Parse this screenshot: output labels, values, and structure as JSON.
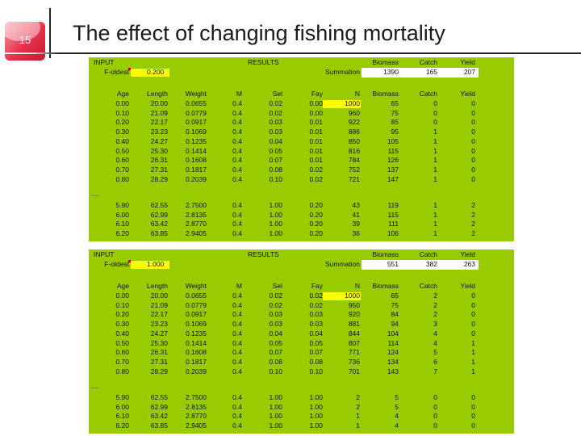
{
  "slide": {
    "number": "15",
    "title": "The effect of changing fishing mortality"
  },
  "labels": {
    "input": "INPUT",
    "f_oldest": "F-oldest",
    "results": "RESULTS",
    "summation": "Summation",
    "biomass": "Biomass",
    "catch": "Catch",
    "yield": "Yield",
    "ellipsis": "....",
    "columns": [
      "Age",
      "Length",
      "Weight",
      "M",
      "Sel",
      "Fay",
      "N",
      "Biomass",
      "Catch",
      "Yield"
    ]
  },
  "tables": [
    {
      "f_oldest_value": "0.200",
      "summation": {
        "biomass": "1390",
        "catch": "165",
        "yield": "207"
      },
      "rows_top": [
        [
          "0.00",
          "20.00",
          "0.0655",
          "0.4",
          "0.02",
          "0.00",
          "1000",
          "65",
          "0",
          "0"
        ],
        [
          "0.10",
          "21.09",
          "0.0779",
          "0.4",
          "0.02",
          "0.00",
          "960",
          "75",
          "0",
          "0"
        ],
        [
          "0.20",
          "22.17",
          "0.0917",
          "0.4",
          "0.03",
          "0.01",
          "922",
          "85",
          "0",
          "0"
        ],
        [
          "0.30",
          "23.23",
          "0.1069",
          "0.4",
          "0.03",
          "0.01",
          "886",
          "95",
          "1",
          "0"
        ],
        [
          "0.40",
          "24.27",
          "0.1235",
          "0.4",
          "0.04",
          "0.01",
          "850",
          "105",
          "1",
          "0"
        ],
        [
          "0.50",
          "25.30",
          "0.1414",
          "0.4",
          "0.05",
          "0.01",
          "816",
          "115",
          "1",
          "0"
        ],
        [
          "0.60",
          "26.31",
          "0.1608",
          "0.4",
          "0.07",
          "0.01",
          "784",
          "126",
          "1",
          "0"
        ],
        [
          "0.70",
          "27.31",
          "0.1817",
          "0.4",
          "0.08",
          "0.02",
          "752",
          "137",
          "1",
          "0"
        ],
        [
          "0.80",
          "28.29",
          "0.2039",
          "0.4",
          "0.10",
          "0.02",
          "721",
          "147",
          "1",
          "0"
        ]
      ],
      "rows_bottom": [
        [
          "5.90",
          "62.55",
          "2.7500",
          "0.4",
          "1.00",
          "0.20",
          "43",
          "119",
          "1",
          "2"
        ],
        [
          "6.00",
          "62.99",
          "2.8135",
          "0.4",
          "1.00",
          "0.20",
          "41",
          "115",
          "1",
          "2"
        ],
        [
          "6.10",
          "63.42",
          "2.8770",
          "0.4",
          "1.00",
          "0.20",
          "39",
          "111",
          "1",
          "2"
        ],
        [
          "6.20",
          "63.85",
          "2.9405",
          "0.4",
          "1.00",
          "0.20",
          "36",
          "106",
          "1",
          "2"
        ]
      ]
    },
    {
      "f_oldest_value": "1.000",
      "summation": {
        "biomass": "551",
        "catch": "382",
        "yield": "263"
      },
      "rows_top": [
        [
          "0.00",
          "20.00",
          "0.0655",
          "0.4",
          "0.02",
          "0.02",
          "1000",
          "65",
          "2",
          "0"
        ],
        [
          "0.10",
          "21.09",
          "0.0779",
          "0.4",
          "0.02",
          "0.02",
          "950",
          "75",
          "2",
          "0"
        ],
        [
          "0.20",
          "22.17",
          "0.0917",
          "0.4",
          "0.03",
          "0.03",
          "920",
          "84",
          "2",
          "0"
        ],
        [
          "0.30",
          "23.23",
          "0.1069",
          "0.4",
          "0.03",
          "0.03",
          "881",
          "94",
          "3",
          "0"
        ],
        [
          "0.40",
          "24.27",
          "0.1235",
          "0.4",
          "0.04",
          "0.04",
          "844",
          "104",
          "4",
          "0"
        ],
        [
          "0.50",
          "25.30",
          "0.1414",
          "0.4",
          "0.05",
          "0.05",
          "807",
          "114",
          "4",
          "1"
        ],
        [
          "0.60",
          "26.31",
          "0.1608",
          "0.4",
          "0.07",
          "0.07",
          "771",
          "124",
          "5",
          "1"
        ],
        [
          "0.70",
          "27.31",
          "0.1817",
          "0.4",
          "0.08",
          "0.08",
          "736",
          "134",
          "6",
          "1"
        ],
        [
          "0.80",
          "28.29",
          "0.2039",
          "0.4",
          "0.10",
          "0.10",
          "701",
          "143",
          "7",
          "1"
        ]
      ],
      "rows_bottom": [
        [
          "5.90",
          "62.55",
          "2.7500",
          "0.4",
          "1.00",
          "1.00",
          "2",
          "5",
          "0",
          "0"
        ],
        [
          "6.00",
          "62.99",
          "2.8135",
          "0.4",
          "1.00",
          "1.00",
          "2",
          "5",
          "0",
          "0"
        ],
        [
          "6.10",
          "63.42",
          "2.8770",
          "0.4",
          "1.00",
          "1.00",
          "1",
          "4",
          "0",
          "0"
        ],
        [
          "6.20",
          "63.85",
          "2.9405",
          "0.4",
          "1.00",
          "1.00",
          "1",
          "4",
          "0",
          "0"
        ]
      ]
    }
  ]
}
